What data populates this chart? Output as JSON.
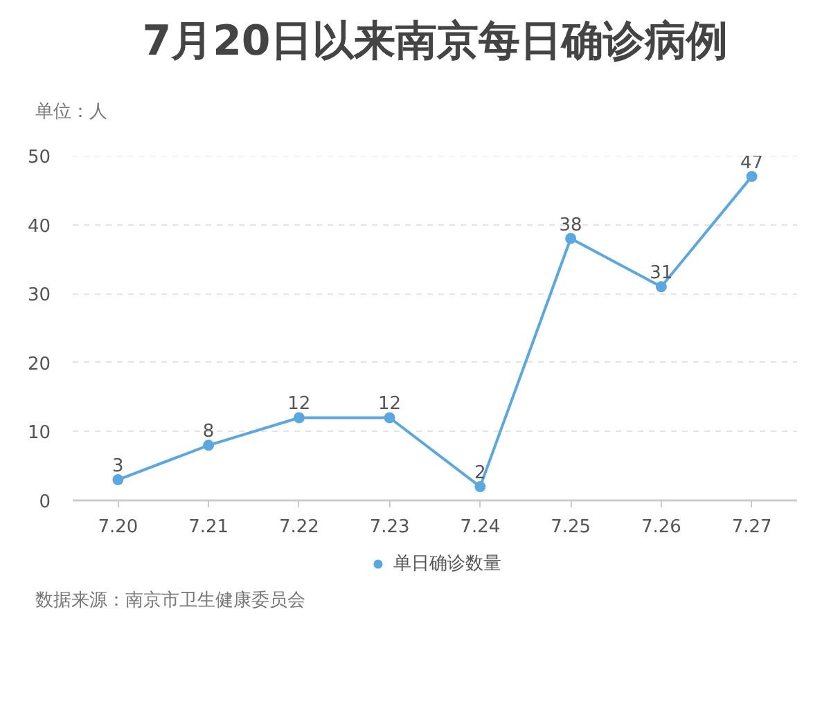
{
  "chart_data": {
    "type": "line",
    "title": "7月20日以来南京每日确诊病例",
    "ylabel": "单位：人",
    "categories": [
      "7.20",
      "7.21",
      "7.22",
      "7.23",
      "7.24",
      "7.25",
      "7.26",
      "7.27"
    ],
    "series": [
      {
        "name": "单日确诊数量",
        "color": "#5ba8e0",
        "values": [
          3,
          8,
          12,
          12,
          2,
          38,
          31,
          47
        ]
      }
    ],
    "ylim": [
      0,
      50
    ],
    "yticks": [
      0,
      10,
      20,
      30,
      40,
      50
    ],
    "grid": "y",
    "legend": "bottom",
    "marker": "circle",
    "data_labels": true,
    "annotations": [
      "数据来源：南京市卫生健康委员会"
    ]
  }
}
